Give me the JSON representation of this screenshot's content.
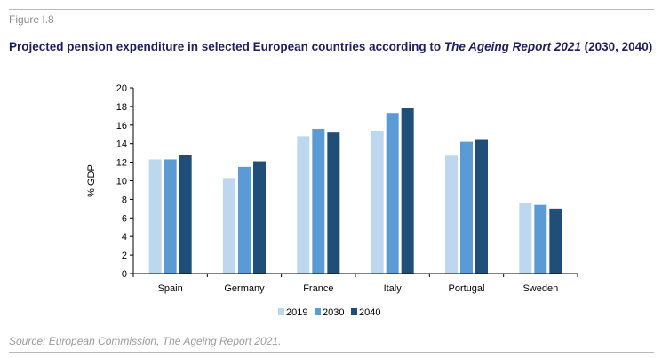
{
  "figure_label": "Figure I.8",
  "title": {
    "part1": "Projected pension expenditure in selected European countries according to ",
    "italic": "The Ageing Report 2021",
    "part2": " (2030, 2040)"
  },
  "source": {
    "prefix": "Source:",
    "text": " European Commission, ",
    "italic": "The Ageing Report 2021",
    "suffix": "."
  },
  "chart_data": {
    "type": "bar",
    "title": "",
    "xlabel": "",
    "ylabel": "% GDP",
    "ylim": [
      0,
      20
    ],
    "yticks": [
      0,
      2,
      4,
      6,
      8,
      10,
      12,
      14,
      16,
      18,
      20
    ],
    "grid": false,
    "legend_position": "bottom",
    "categories": [
      "Spain",
      "Germany",
      "France",
      "Italy",
      "Portugal",
      "Sweden"
    ],
    "series": [
      {
        "name": "2019",
        "color": "#bdd7ee",
        "values": [
          12.3,
          10.3,
          14.8,
          15.4,
          12.7,
          7.6
        ]
      },
      {
        "name": "2030",
        "color": "#5b9bd5",
        "values": [
          12.3,
          11.5,
          15.6,
          17.3,
          14.2,
          7.4
        ]
      },
      {
        "name": "2040",
        "color": "#1f4e79",
        "values": [
          12.8,
          12.1,
          15.2,
          17.8,
          14.4,
          7.0
        ]
      }
    ]
  }
}
